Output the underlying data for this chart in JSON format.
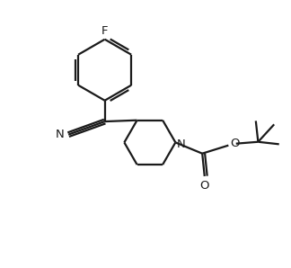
{
  "bg_color": "#ffffff",
  "line_color": "#1a1a1a",
  "line_width": 1.6,
  "font_size": 9.5,
  "fig_width": 3.24,
  "fig_height": 2.98,
  "dpi": 100,
  "xlim": [
    0,
    10
  ],
  "ylim": [
    0,
    9.2
  ]
}
